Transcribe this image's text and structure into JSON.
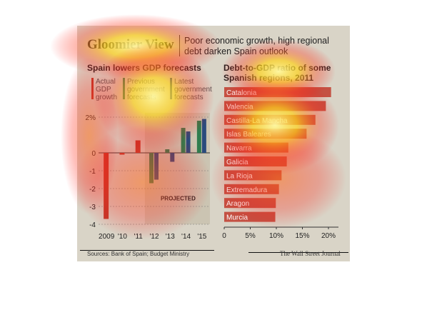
{
  "header": {
    "title": "Gloomier View",
    "subtitle": "Poor economic growth, high regional debt darken Spain outlook"
  },
  "left_panel": {
    "title": "Spain lowers GDP forecasts",
    "legend": [
      {
        "label": "Actual GDP growth",
        "color": "#c0392b"
      },
      {
        "label": "Previous government forecasts",
        "color": "#2e7d4f"
      },
      {
        "label": "Latest government forecasts",
        "color": "#2a4b7c"
      }
    ],
    "projected_label": "PROJECTED"
  },
  "right_panel": {
    "title": "Debt-to-GDP ratio of some Spanish regions, 2011"
  },
  "footer": {
    "source": "Sources: Bank of Spain; Budget Ministry",
    "credit": "The Wall Street Journal"
  },
  "colors": {
    "background": "#d9d4c7",
    "actual": "#c0392b",
    "previous": "#2e7d4f",
    "latest": "#2a4b7c",
    "region_bar": "#c0392b",
    "projected_shade": "#cbc4b2"
  },
  "chart_data": [
    {
      "type": "bar",
      "title": "Spain lowers GDP forecasts",
      "categories": [
        "2009",
        "'10",
        "'11",
        "'12",
        "'13",
        "'14",
        "'15"
      ],
      "series": [
        {
          "name": "Actual GDP growth",
          "values": [
            -3.7,
            -0.1,
            0.7,
            null,
            null,
            null,
            null
          ]
        },
        {
          "name": "Previous government forecasts",
          "values": [
            null,
            null,
            null,
            -1.7,
            0.2,
            1.4,
            1.8
          ]
        },
        {
          "name": "Latest government forecasts",
          "values": [
            null,
            null,
            null,
            -1.5,
            -0.5,
            1.2,
            1.9
          ]
        }
      ],
      "yticks": [
        "2%",
        "0",
        "-1",
        "-2",
        "-3",
        "-4"
      ],
      "ylim": [
        -4,
        2
      ],
      "projected_from": "'12",
      "legend": "top"
    },
    {
      "type": "bar",
      "orientation": "horizontal",
      "title": "Debt-to-GDP ratio of some Spanish regions, 2011",
      "categories": [
        "Catalonia",
        "Valencia",
        "Castilla-La Mancha",
        "Islas Baleares",
        "Navarra",
        "Galicia",
        "La Rioja",
        "Extremadura",
        "Aragon",
        "Murcia"
      ],
      "values": [
        20.5,
        19.5,
        17.5,
        15.8,
        12.3,
        12.0,
        11.0,
        10.5,
        9.9,
        9.8
      ],
      "xticks": [
        "0",
        "5%",
        "10%",
        "15%",
        "20%"
      ],
      "xlim": [
        0,
        22
      ]
    }
  ]
}
